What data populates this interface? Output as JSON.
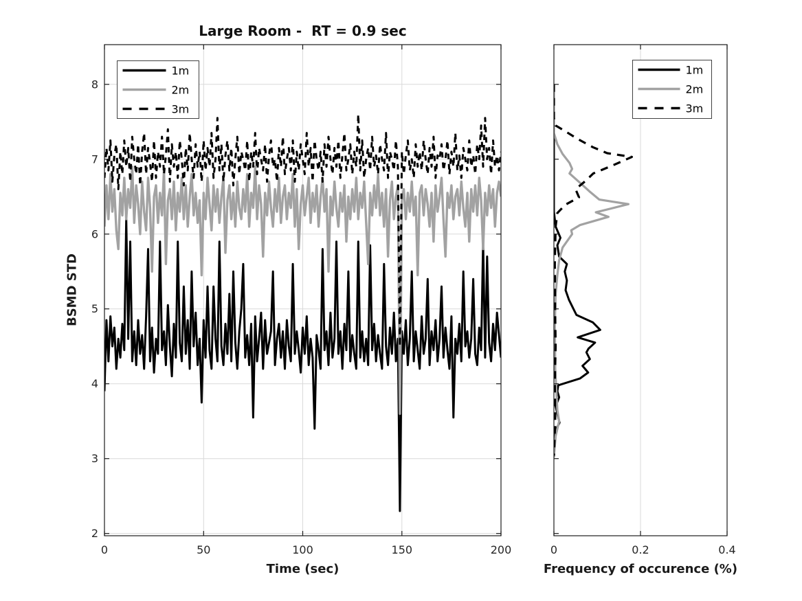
{
  "figure": {
    "background": "#ffffff"
  },
  "colors": {
    "black": "#000000",
    "gray": "#a2a2a2",
    "grid": "#d9d9d9",
    "axis": "#1a1a1a",
    "tick_label": "#262626",
    "legend_border": "#404040",
    "legend_fill": "#ffffff"
  },
  "legend": {
    "entries": [
      {
        "label": "1m",
        "color": "#000000",
        "dash": "solid"
      },
      {
        "label": "2m",
        "color": "#a2a2a2",
        "dash": "solid"
      },
      {
        "label": "3m",
        "color": "#000000",
        "dash": "dashed"
      }
    ]
  },
  "chart_data": [
    {
      "type": "line",
      "title": "Large Room -  RT = 0.9 sec",
      "xlabel": "Time (sec)",
      "ylabel": "BSMD STD",
      "xlim": [
        0,
        200
      ],
      "ylim": [
        2,
        8.5
      ],
      "xticks": [
        0,
        50,
        100,
        150,
        200
      ],
      "xticklabels": [
        "0",
        "50",
        "100",
        "150",
        "200"
      ],
      "yticks": [
        2,
        3,
        4,
        5,
        6,
        7,
        8
      ],
      "grid": true,
      "legend_position": "top-left",
      "x_start": 0,
      "x_step": 1,
      "series": [
        {
          "name": "1m",
          "line": "solid",
          "color": "#000000",
          "values": [
            3.9,
            4.85,
            4.3,
            4.9,
            4.5,
            4.75,
            4.2,
            4.6,
            4.35,
            4.8,
            4.45,
            6.2,
            4.6,
            5.9,
            4.3,
            4.7,
            4.25,
            4.85,
            4.4,
            4.65,
            4.2,
            4.9,
            5.8,
            4.3,
            4.75,
            4.15,
            4.6,
            4.4,
            5.9,
            4.45,
            4.7,
            4.25,
            5.05,
            4.5,
            4.1,
            4.8,
            4.35,
            5.9,
            4.55,
            4.3,
            5.3,
            4.4,
            4.85,
            4.2,
            5.5,
            4.5,
            4.95,
            4.25,
            4.6,
            3.75,
            4.85,
            4.35,
            5.3,
            4.45,
            4.2,
            5.3,
            4.6,
            4.3,
            5.9,
            4.5,
            4.25,
            4.8,
            4.4,
            5.2,
            4.3,
            5.5,
            4.55,
            4.2,
            4.7,
            5.0,
            5.6,
            4.35,
            4.65,
            4.25,
            4.8,
            3.55,
            4.9,
            4.3,
            4.6,
            4.95,
            4.2,
            4.85,
            4.4,
            4.55,
            4.7,
            5.5,
            4.25,
            4.6,
            4.8,
            4.35,
            4.7,
            4.2,
            4.85,
            4.5,
            4.3,
            5.6,
            4.4,
            4.7,
            4.45,
            4.15,
            4.75,
            4.4,
            4.9,
            4.25,
            4.6,
            4.35,
            3.4,
            4.65,
            4.45,
            4.2,
            5.8,
            4.45,
            4.7,
            4.25,
            4.95,
            4.35,
            4.6,
            5.9,
            4.4,
            4.7,
            4.2,
            4.8,
            4.45,
            5.5,
            4.3,
            4.65,
            4.4,
            4.2,
            5.9,
            4.35,
            4.7,
            4.3,
            4.6,
            4.25,
            5.85,
            4.45,
            4.8,
            4.3,
            4.65,
            4.4,
            4.2,
            5.6,
            4.5,
            4.25,
            4.75,
            4.4,
            4.95,
            4.3,
            4.6,
            2.3,
            4.7,
            4.4,
            4.85,
            4.25,
            4.6,
            5.5,
            4.3,
            4.7,
            4.45,
            4.2,
            4.9,
            4.4,
            4.6,
            5.4,
            4.25,
            4.7,
            4.45,
            4.85,
            4.3,
            4.6,
            5.3,
            4.35,
            4.75,
            4.45,
            4.2,
            4.9,
            3.55,
            4.6,
            4.4,
            4.8,
            4.3,
            5.5,
            4.5,
            4.7,
            4.35,
            4.6,
            5.4,
            4.4,
            4.25,
            4.75,
            4.45,
            5.9,
            4.35,
            5.7,
            4.55,
            4.3,
            4.8,
            4.45,
            4.95,
            4.65,
            4.35
          ]
        },
        {
          "name": "2m",
          "line": "solid",
          "color": "#a2a2a2",
          "values": [
            6.1,
            6.65,
            6.2,
            6.8,
            6.3,
            6.6,
            6.05,
            5.8,
            6.55,
            6.25,
            6.75,
            6.2,
            6.6,
            6.35,
            6.9,
            6.15,
            6.65,
            6.4,
            6.0,
            6.7,
            6.3,
            6.05,
            6.75,
            6.35,
            5.5,
            6.5,
            6.65,
            6.15,
            6.55,
            6.25,
            6.85,
            5.6,
            6.45,
            6.6,
            6.2,
            6.7,
            6.05,
            6.55,
            6.3,
            6.75,
            6.2,
            6.65,
            6.1,
            6.5,
            6.8,
            6.25,
            6.55,
            6.15,
            6.45,
            5.45,
            6.55,
            6.2,
            6.75,
            6.4,
            6.05,
            6.65,
            6.3,
            6.6,
            6.15,
            6.5,
            6.75,
            5.75,
            6.45,
            6.65,
            6.2,
            6.55,
            6.1,
            6.7,
            6.35,
            6.2,
            6.6,
            6.3,
            6.8,
            6.1,
            6.55,
            6.35,
            6.9,
            6.2,
            6.65,
            6.4,
            5.7,
            6.55,
            6.25,
            6.7,
            6.35,
            6.1,
            6.6,
            6.3,
            6.75,
            6.15,
            6.5,
            6.65,
            6.2,
            6.55,
            6.35,
            6.8,
            6.1,
            6.6,
            5.8,
            6.4,
            6.65,
            6.25,
            6.5,
            6.75,
            6.15,
            6.55,
            6.3,
            6.65,
            6.1,
            6.5,
            6.75,
            6.3,
            6.6,
            5.5,
            6.5,
            6.25,
            6.7,
            6.35,
            6.1,
            6.55,
            6.3,
            6.65,
            5.9,
            6.5,
            6.2,
            6.6,
            6.3,
            6.75,
            6.2,
            6.55,
            6.35,
            6.7,
            6.15,
            5.6,
            6.55,
            6.25,
            6.65,
            6.35,
            6.8,
            6.25,
            6.55,
            6.1,
            6.6,
            5.7,
            6.45,
            6.7,
            6.2,
            6.5,
            6.65,
            3.6,
            6.45,
            6.6,
            6.2,
            6.55,
            6.3,
            6.7,
            6.25,
            6.5,
            5.45,
            6.55,
            6.65,
            6.25,
            6.6,
            6.4,
            6.1,
            6.55,
            5.9,
            6.65,
            6.3,
            6.5,
            6.75,
            6.2,
            5.7,
            6.55,
            6.35,
            6.65,
            6.2,
            6.5,
            6.6,
            6.25,
            6.7,
            6.35,
            6.1,
            6.55,
            5.9,
            6.6,
            6.3,
            6.65,
            6.25,
            6.75,
            6.45,
            5.8,
            6.55,
            6.25,
            6.65,
            6.35,
            6.6,
            6.1,
            6.55,
            6.7,
            6.5
          ]
        },
        {
          "name": "3m",
          "line": "dashed",
          "color": "#000000",
          "values": [
            6.75,
            7.15,
            6.85,
            7.25,
            6.7,
            7.05,
            7.2,
            6.6,
            7.1,
            6.8,
            7.25,
            6.9,
            7.15,
            6.7,
            7.3,
            7.0,
            6.8,
            7.2,
            6.65,
            7.1,
            7.35,
            6.8,
            7.15,
            6.95,
            6.7,
            7.25,
            6.75,
            7.1,
            6.9,
            7.3,
            6.8,
            7.05,
            7.4,
            6.7,
            7.2,
            6.9,
            7.1,
            6.75,
            7.25,
            7.0,
            6.65,
            7.15,
            6.85,
            7.35,
            7.0,
            6.75,
            7.2,
            6.9,
            7.1,
            6.7,
            7.25,
            6.85,
            7.15,
            6.9,
            7.35,
            6.75,
            7.0,
            7.55,
            6.85,
            7.2,
            6.7,
            7.05,
            7.25,
            6.85,
            7.15,
            6.65,
            7.0,
            7.3,
            6.8,
            7.1,
            7.0,
            6.85,
            7.25,
            6.7,
            7.1,
            6.9,
            7.35,
            6.8,
            7.15,
            7.0,
            6.85,
            7.2,
            6.7,
            7.05,
            7.25,
            6.9,
            7.0,
            6.7,
            7.15,
            6.9,
            7.3,
            6.8,
            7.0,
            7.15,
            6.85,
            7.25,
            6.7,
            7.1,
            6.85,
            7.2,
            7.0,
            6.8,
            7.35,
            6.9,
            7.15,
            6.7,
            7.25,
            7.0,
            6.85,
            7.1,
            6.7,
            7.2,
            6.9,
            7.3,
            7.0,
            6.8,
            7.15,
            6.9,
            7.25,
            6.75,
            7.05,
            7.35,
            6.85,
            7.0,
            7.2,
            6.8,
            7.1,
            6.9,
            7.6,
            6.85,
            7.25,
            6.75,
            7.0,
            7.15,
            6.85,
            7.3,
            6.9,
            7.05,
            6.8,
            7.2,
            7.0,
            6.85,
            7.35,
            6.75,
            7.1,
            7.0,
            6.85,
            7.25,
            6.9,
            4.5,
            7.1,
            6.8,
            7.05,
            7.25,
            6.85,
            7.0,
            6.75,
            7.2,
            6.9,
            7.1,
            6.85,
            7.25,
            7.0,
            6.8,
            7.15,
            6.9,
            7.3,
            6.75,
            7.05,
            7.0,
            7.2,
            6.85,
            7.0,
            7.25,
            6.8,
            7.1,
            6.9,
            7.35,
            6.85,
            7.05,
            6.75,
            7.15,
            7.0,
            6.85,
            7.25,
            6.9,
            7.05,
            6.8,
            7.2,
            7.0,
            7.45,
            6.9,
            7.55,
            7.0,
            7.15,
            6.8,
            7.25,
            6.9,
            7.05,
            6.85,
            7.1
          ]
        }
      ]
    },
    {
      "type": "line",
      "title": "",
      "xlabel": "Frequency of occurence (%)",
      "ylabel": "",
      "xlim": [
        0,
        0.4
      ],
      "ylim": [
        2,
        8.5
      ],
      "xticks": [
        0,
        0.2,
        0.4
      ],
      "xticklabels": [
        "0",
        "0.2",
        "0.4"
      ],
      "yticks": [
        2,
        3,
        4,
        5,
        6,
        7,
        8
      ],
      "grid": true,
      "grid_y": false,
      "legend_position": "top-right",
      "orientation": "distribution: x = frequency, y = BSMD STD",
      "series": [
        {
          "name": "1m",
          "line": "solid",
          "color": "#000000",
          "points": [
            [
              0,
              8.0
            ],
            [
              0,
              6.3
            ],
            [
              0.004,
              6.1
            ],
            [
              0.015,
              5.95
            ],
            [
              0.008,
              5.85
            ],
            [
              0.012,
              5.7
            ],
            [
              0.03,
              5.6
            ],
            [
              0.025,
              5.5
            ],
            [
              0.03,
              5.38
            ],
            [
              0.027,
              5.25
            ],
            [
              0.035,
              5.12
            ],
            [
              0.045,
              5.0
            ],
            [
              0.052,
              4.92
            ],
            [
              0.09,
              4.82
            ],
            [
              0.107,
              4.72
            ],
            [
              0.055,
              4.62
            ],
            [
              0.095,
              4.55
            ],
            [
              0.08,
              4.47
            ],
            [
              0.075,
              4.42
            ],
            [
              0.083,
              4.33
            ],
            [
              0.066,
              4.24
            ],
            [
              0.079,
              4.15
            ],
            [
              0.06,
              4.07
            ],
            [
              0.01,
              3.98
            ],
            [
              0.008,
              3.9
            ],
            [
              0.012,
              3.82
            ],
            [
              0.004,
              3.7
            ],
            [
              0.008,
              3.6
            ],
            [
              0.013,
              3.48
            ],
            [
              0.004,
              3.38
            ],
            [
              0.002,
              3.2
            ],
            [
              0,
              3.02
            ]
          ]
        },
        {
          "name": "2m",
          "line": "solid",
          "color": "#a2a2a2",
          "points": [
            [
              0,
              8.0
            ],
            [
              0,
              7.35
            ],
            [
              0.008,
              7.2
            ],
            [
              0.02,
              7.07
            ],
            [
              0.036,
              6.95
            ],
            [
              0.042,
              6.87
            ],
            [
              0.036,
              6.81
            ],
            [
              0.063,
              6.67
            ],
            [
              0.082,
              6.57
            ],
            [
              0.105,
              6.46
            ],
            [
              0.172,
              6.4
            ],
            [
              0.097,
              6.29
            ],
            [
              0.126,
              6.23
            ],
            [
              0.06,
              6.12
            ],
            [
              0.04,
              6.05
            ],
            [
              0.042,
              6.0
            ],
            [
              0.02,
              5.82
            ],
            [
              0.012,
              5.65
            ],
            [
              0.008,
              5.45
            ],
            [
              0.004,
              5.2
            ],
            [
              0.002,
              4.8
            ],
            [
              0.003,
              4.2
            ],
            [
              0.008,
              3.65
            ],
            [
              0.012,
              3.5
            ],
            [
              0.004,
              3.3
            ],
            [
              0,
              3.02
            ]
          ]
        },
        {
          "name": "3m",
          "line": "dashed",
          "color": "#000000",
          "points": [
            [
              0,
              8.0
            ],
            [
              0,
              7.55
            ],
            [
              0.004,
              7.45
            ],
            [
              0.027,
              7.37
            ],
            [
              0.055,
              7.27
            ],
            [
              0.09,
              7.16
            ],
            [
              0.123,
              7.08
            ],
            [
              0.18,
              7.03
            ],
            [
              0.137,
              6.92
            ],
            [
              0.091,
              6.81
            ],
            [
              0.073,
              6.71
            ],
            [
              0.05,
              6.6
            ],
            [
              0.058,
              6.49
            ],
            [
              0.026,
              6.39
            ],
            [
              0.008,
              6.28
            ],
            [
              0.004,
              6.1
            ],
            [
              0.002,
              5.6
            ],
            [
              0.003,
              4.9
            ],
            [
              0.004,
              4.5
            ],
            [
              0.002,
              4.0
            ],
            [
              0.003,
              3.5
            ],
            [
              0,
              3.04
            ]
          ]
        }
      ]
    }
  ]
}
